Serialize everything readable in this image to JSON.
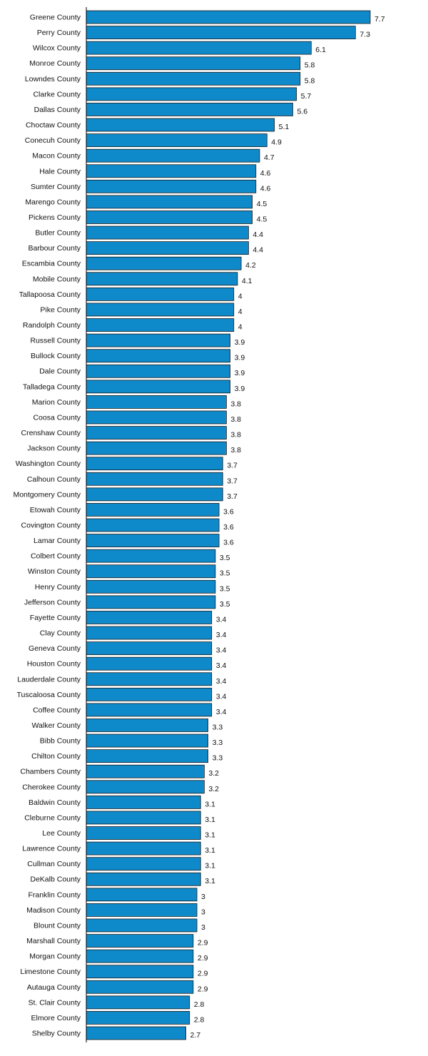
{
  "colors": {
    "bar_fill": "#0E8ACB",
    "bar_stroke": "#1A1A1A",
    "axis": "#000000",
    "text": "#111111"
  },
  "chart_data": {
    "type": "bar",
    "orientation": "horizontal",
    "title": "",
    "xlabel": "",
    "ylabel": "",
    "xlim": [
      0,
      7.7
    ],
    "grid": false,
    "legend": "none",
    "data_labels": true,
    "categories": [
      "Greene County",
      "Perry County",
      "Wilcox County",
      "Monroe County",
      "Lowndes County",
      "Clarke County",
      "Dallas County",
      "Choctaw County",
      "Conecuh County",
      "Macon County",
      "Hale County",
      "Sumter County",
      "Marengo County",
      "Pickens County",
      "Butler County",
      "Barbour County",
      "Escambia County",
      "Mobile County",
      "Tallapoosa County",
      "Pike County",
      "Randolph County",
      "Russell County",
      "Bullock County",
      "Dale County",
      "Talladega County",
      "Marion County",
      "Coosa County",
      "Crenshaw County",
      "Jackson County",
      "Washington County",
      "Calhoun County",
      "Montgomery County",
      "Etowah County",
      "Covington County",
      "Lamar County",
      "Colbert County",
      "Winston County",
      "Henry County",
      "Jefferson County",
      "Fayette County",
      "Clay County",
      "Geneva County",
      "Houston County",
      "Lauderdale County",
      "Tuscaloosa County",
      "Coffee County",
      "Walker County",
      "Bibb County",
      "Chilton County",
      "Chambers County",
      "Cherokee County",
      "Baldwin County",
      "Cleburne County",
      "Lee County",
      "Lawrence County",
      "Cullman County",
      "DeKalb County",
      "Franklin County",
      "Madison County",
      "Blount County",
      "Marshall County",
      "Morgan County",
      "Limestone County",
      "Autauga County",
      "St. Clair County",
      "Elmore County",
      "Shelby County"
    ],
    "values": [
      7.7,
      7.3,
      6.1,
      5.8,
      5.8,
      5.7,
      5.6,
      5.1,
      4.9,
      4.7,
      4.6,
      4.6,
      4.5,
      4.5,
      4.4,
      4.4,
      4.2,
      4.1,
      4,
      4,
      4,
      3.9,
      3.9,
      3.9,
      3.9,
      3.8,
      3.8,
      3.8,
      3.8,
      3.7,
      3.7,
      3.7,
      3.6,
      3.6,
      3.6,
      3.5,
      3.5,
      3.5,
      3.5,
      3.4,
      3.4,
      3.4,
      3.4,
      3.4,
      3.4,
      3.4,
      3.3,
      3.3,
      3.3,
      3.2,
      3.2,
      3.1,
      3.1,
      3.1,
      3.1,
      3.1,
      3.1,
      3,
      3,
      3,
      2.9,
      2.9,
      2.9,
      2.9,
      2.8,
      2.8,
      2.7
    ]
  }
}
